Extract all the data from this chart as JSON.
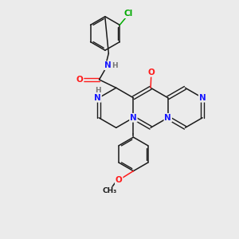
{
  "background_color": "#ebebeb",
  "bond_color": "#1a1a1a",
  "atom_colors": {
    "N": "#1a1aff",
    "O": "#ff1a1a",
    "Cl": "#00aa00",
    "C": "#1a1a1a",
    "H": "#777777"
  },
  "figsize": [
    3.0,
    3.0
  ],
  "dpi": 100
}
